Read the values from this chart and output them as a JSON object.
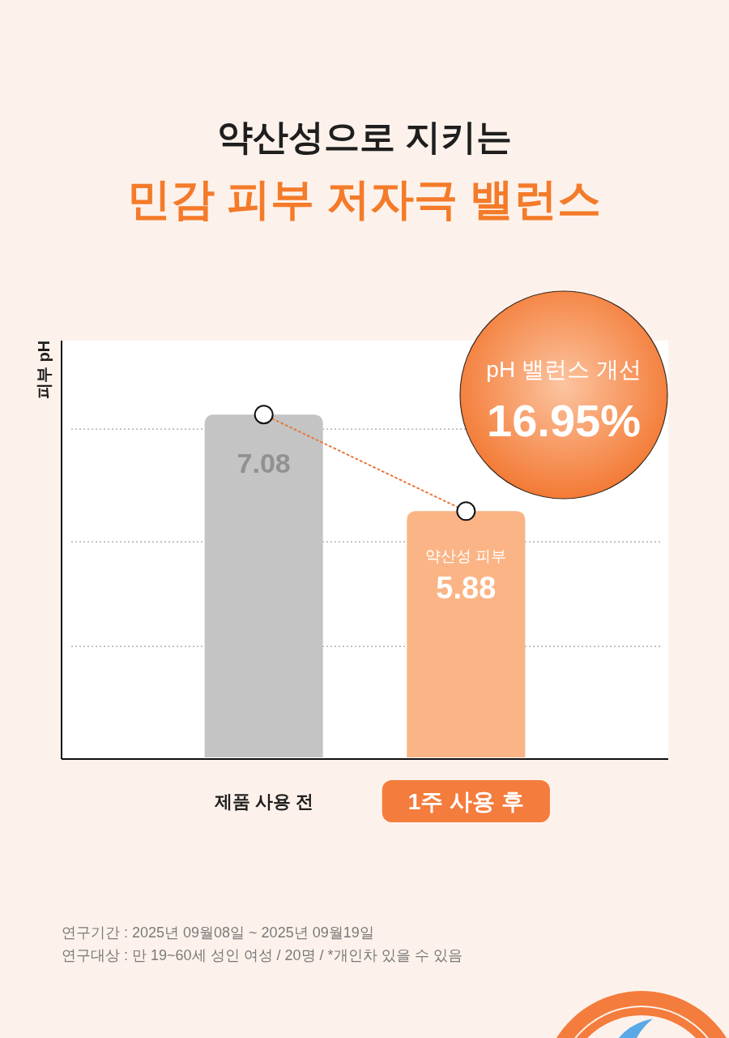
{
  "chart_data": {
    "type": "bar",
    "title": "약산성으로 지키는",
    "subtitle": "민감 피부 저자극 밸런스",
    "ylabel": "피부 pH",
    "categories": [
      "제품 사용 전",
      "1주 사용 후"
    ],
    "series": [
      {
        "colors": [
          "#c4c4c4",
          "#fbb485"
        ],
        "values": [
          7.08,
          5.88
        ],
        "value_labels": [
          "7.08",
          "5.88"
        ]
      },
      {
        "type": "line",
        "color": "#e8763a",
        "values": [
          7.08,
          5.88
        ],
        "marker": "circle",
        "line_style": "dotted"
      }
    ],
    "ylim": [
      2.8,
      8.0
    ],
    "yticks": [
      {
        "value": 4.2,
        "label": null
      },
      {
        "value": 5.5,
        "label": null
      },
      {
        "value": 6.9,
        "label": null
      }
    ],
    "grid": "y",
    "tick_labels": "x",
    "annotations": [
      "pH 밸런스 개선",
      "16.95%",
      {
        "text": "약산성 피부",
        "x": "1주 사용 후",
        "y": 5.88
      },
      "연구기간 : 2025년 09월08일 ~ 2025년 09월19일",
      "연구대상 : 만 19~60세 성인 여성 / 20명 / *개인차 있을 수 있음"
    ]
  }
}
